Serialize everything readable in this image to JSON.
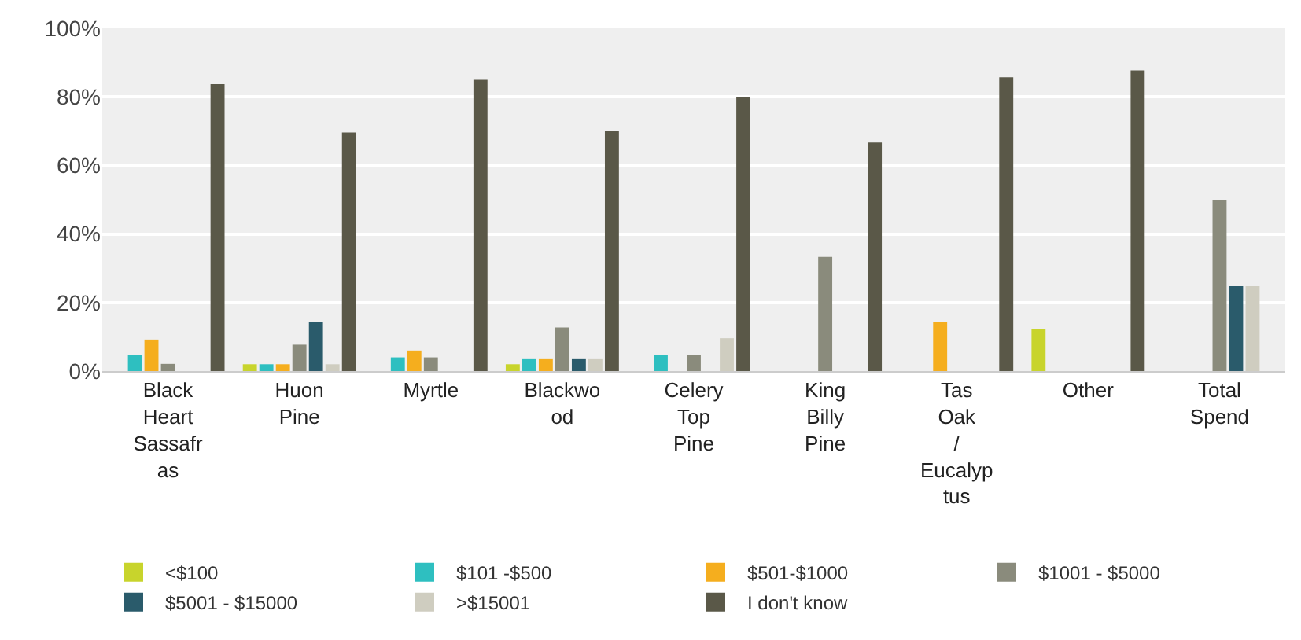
{
  "chart_data": {
    "type": "bar",
    "categories": [
      "Black Heart Sassafras",
      "Huon Pine",
      "Myrtle",
      "Blackwood",
      "Celery Top Pine",
      "King Billy Pine",
      "Tas Oak / Eucalyptus",
      "Other",
      "Total Spend"
    ],
    "series": [
      {
        "name": "<$100",
        "color": "#c8d42c",
        "values": [
          null,
          2,
          null,
          2,
          null,
          null,
          null,
          12.3,
          null
        ]
      },
      {
        "name": "$101 -$500",
        "color": "#2ebfc0",
        "values": [
          4.7,
          2,
          4,
          3.7,
          4.7,
          null,
          null,
          null,
          null
        ]
      },
      {
        "name": "$501-$1000",
        "color": "#f5ae1e",
        "values": [
          9.2,
          2,
          6,
          3.7,
          null,
          null,
          14.3,
          null,
          null
        ]
      },
      {
        "name": "$1001 - $5000",
        "color": "#8a8b7c",
        "values": [
          2.1,
          7.7,
          4,
          12.7,
          4.7,
          33.3,
          null,
          null,
          50
        ]
      },
      {
        "name": "$5001 - $15000",
        "color": "#2a5b6b",
        "values": [
          null,
          14.3,
          null,
          3.7,
          null,
          null,
          null,
          null,
          24.8
        ]
      },
      {
        "name": ">$15001",
        "color": "#cfcdc0",
        "values": [
          null,
          2,
          null,
          3.7,
          9.6,
          null,
          null,
          null,
          24.8
        ]
      },
      {
        "name": "I don't know",
        "color": "#5a5848",
        "values": [
          83.7,
          69.6,
          85,
          70,
          80,
          66.7,
          85.7,
          87.7,
          null
        ]
      }
    ],
    "ylim": [
      0,
      100
    ],
    "yticks": [
      {
        "value": 0,
        "label": "0%"
      },
      {
        "value": 20,
        "label": "20%"
      },
      {
        "value": 40,
        "label": "40%"
      },
      {
        "value": 60,
        "label": "60%"
      },
      {
        "value": 80,
        "label": "80%"
      },
      {
        "value": 100,
        "label": "100%"
      }
    ],
    "grid": "y",
    "legend": "bottom"
  }
}
